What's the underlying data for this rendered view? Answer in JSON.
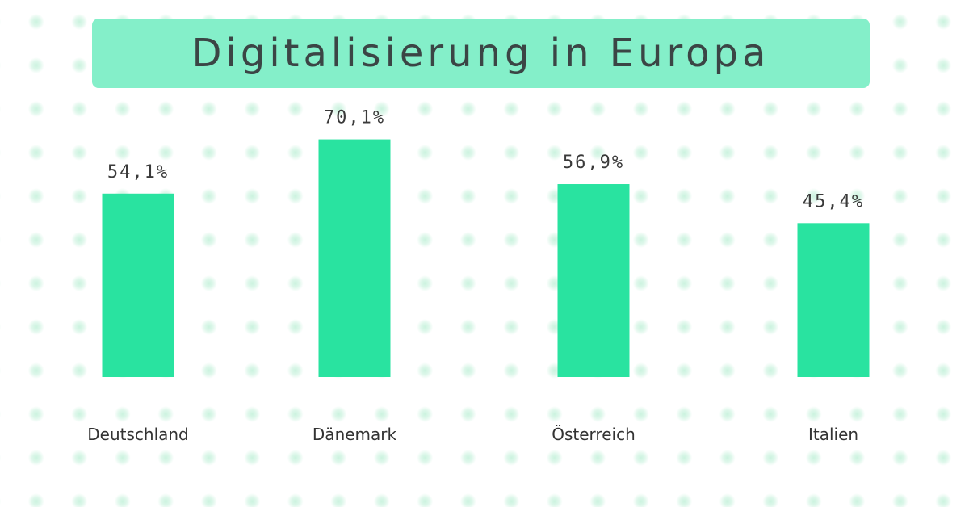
{
  "title": "Digitalisierung in Europa",
  "colors": {
    "bar": "#29e3a0",
    "title_bg": "#84efc9",
    "title_text": "#3b4545"
  },
  "chart_data": {
    "type": "bar",
    "title": "Digitalisierung in Europa",
    "xlabel": "",
    "ylabel": "",
    "categories": [
      "Deutschland",
      "Dänemark",
      "Österreich",
      "Italien"
    ],
    "values": [
      54.1,
      70.1,
      56.9,
      45.4
    ],
    "value_labels": [
      "54,1%",
      "70,1%",
      "56,9%",
      "45,4%"
    ],
    "ylim": [
      0,
      75
    ],
    "grid": false,
    "legend": "none"
  }
}
